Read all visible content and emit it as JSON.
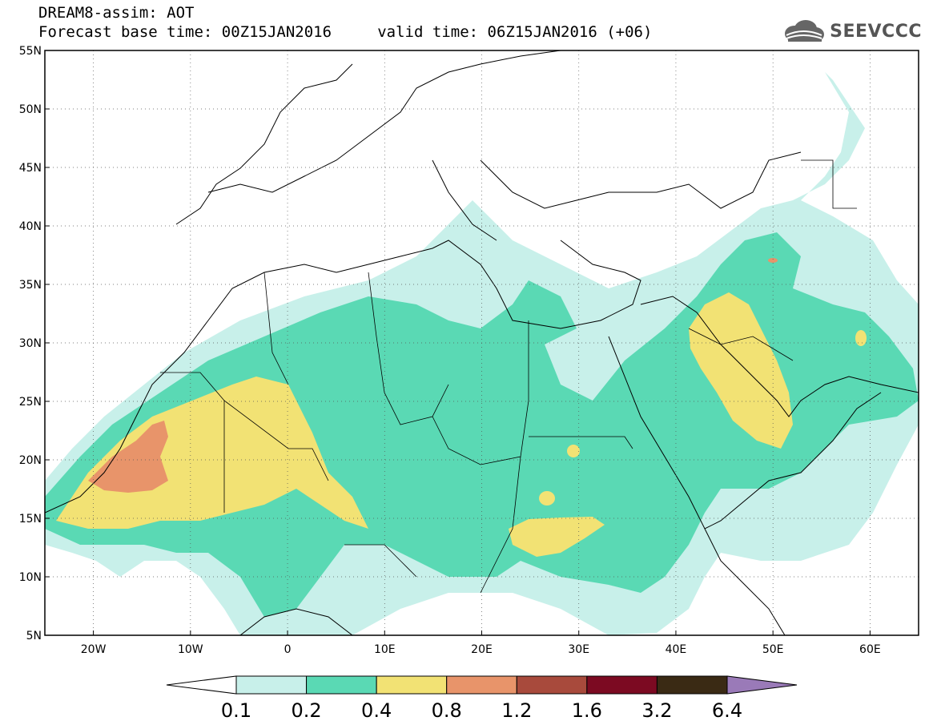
{
  "header": {
    "line1": "DREAM8-assim: AOT",
    "line2": "Forecast base time: 00Z15JAN2016     valid time: 06Z15JAN2016 (+06)"
  },
  "logo": {
    "text": "SEEVCCC",
    "icon": "cloud-icon"
  },
  "map": {
    "lon_range": [
      -25,
      65
    ],
    "lat_range": [
      5,
      55
    ],
    "lon_ticks": [
      "20W",
      "10W",
      "0",
      "10E",
      "20E",
      "30E",
      "40E",
      "50E",
      "60E"
    ],
    "lon_tick_values": [
      -20,
      -10,
      0,
      10,
      20,
      30,
      40,
      50,
      60
    ],
    "lat_ticks": [
      "5N",
      "10N",
      "15N",
      "20N",
      "25N",
      "30N",
      "35N",
      "40N",
      "45N",
      "50N",
      "55N"
    ],
    "lat_tick_values": [
      5,
      10,
      15,
      20,
      25,
      30,
      35,
      40,
      45,
      50,
      55
    ],
    "grid": true,
    "grid_style": "dotted"
  },
  "colorbar": {
    "labels": [
      "0.1",
      "0.2",
      "0.4",
      "0.8",
      "1.2",
      "1.6",
      "3.2",
      "6.4"
    ],
    "colors": [
      "#c8f0ea",
      "#5ad9b4",
      "#f2e274",
      "#e8946a",
      "#a84a3c",
      "#7c0a22",
      "#3a2a14",
      "#9a7ab8"
    ]
  }
}
